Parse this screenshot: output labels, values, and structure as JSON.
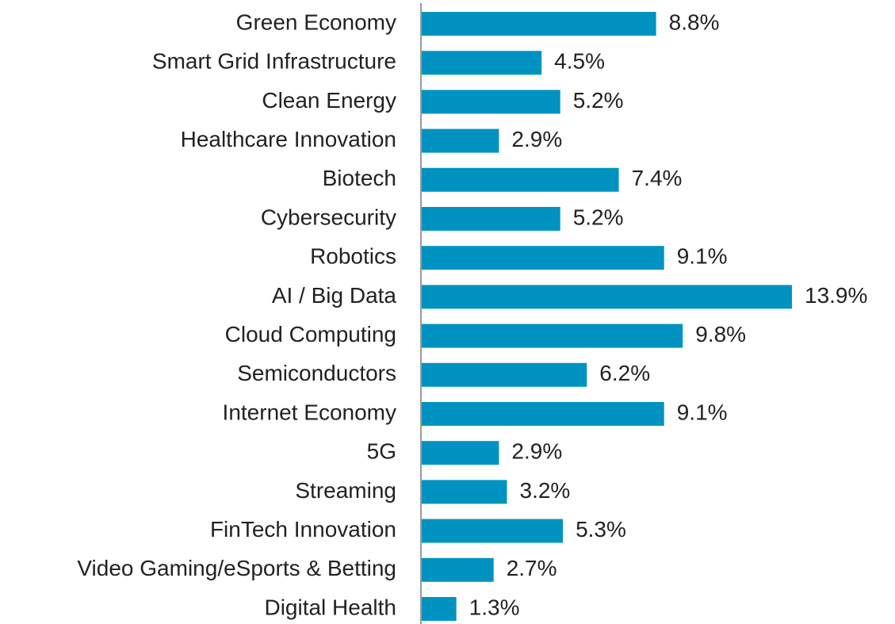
{
  "chart_data": {
    "type": "hbar",
    "categories": [
      "Green Economy",
      "Smart Grid Infrastructure",
      "Clean Energy",
      "Healthcare Innovation",
      "Biotech",
      "Cybersecurity",
      "Robotics",
      "AI / Big Data",
      "Cloud Computing",
      "Semiconductors",
      "Internet Economy",
      "5G",
      "Streaming",
      "FinTech Innovation",
      "Video Gaming/eSports & Betting",
      "Digital Health"
    ],
    "values": [
      8.8,
      4.5,
      5.2,
      2.9,
      7.4,
      5.2,
      9.1,
      13.9,
      9.8,
      6.2,
      9.1,
      2.9,
      3.2,
      5.3,
      2.7,
      1.3
    ],
    "value_labels": [
      "8.8%",
      "4.5%",
      "5.2%",
      "2.9%",
      "7.4%",
      "5.2%",
      "9.1%",
      "13.9%",
      "9.8%",
      "6.2%",
      "9.1%",
      "2.9%",
      "3.2%",
      "5.3%",
      "2.7%",
      "1.3%"
    ],
    "color": "#0093c1"
  }
}
